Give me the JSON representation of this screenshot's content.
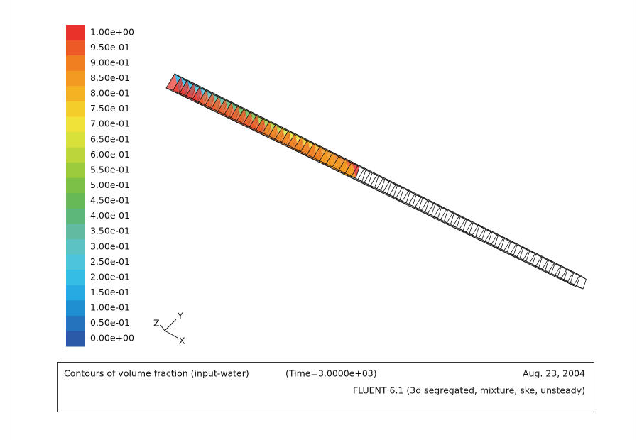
{
  "legend": {
    "labels": [
      "1.00e+00",
      "9.50e-01",
      "9.00e-01",
      "8.50e-01",
      "8.00e-01",
      "7.50e-01",
      "7.00e-01",
      "6.50e-01",
      "6.00e-01",
      "5.50e-01",
      "5.00e-01",
      "4.50e-01",
      "4.00e-01",
      "3.50e-01",
      "3.00e-01",
      "2.50e-01",
      "2.00e-01",
      "1.50e-01",
      "1.00e-01",
      "0.50e-01",
      "0.00e+00"
    ],
    "colors": [
      "#e8322a",
      "#ee5a26",
      "#f07f22",
      "#f29a21",
      "#f5b324",
      "#f4cd2b",
      "#f1e23a",
      "#d8e03a",
      "#bcd53b",
      "#9ccb3e",
      "#7dc047",
      "#67b856",
      "#5db67a",
      "#62bba0",
      "#5cc2c4",
      "#4dc4dc",
      "#36bde6",
      "#27a9e1",
      "#1f8fd2",
      "#2573bd",
      "#2b5ba8"
    ]
  },
  "axes": {
    "z": "Z",
    "y": "Y",
    "x": "X"
  },
  "caption": {
    "title": "Contours of volume fraction (input-water)",
    "time": "(Time=3.0000e+03)",
    "date": "Aug. 23, 2004",
    "solver": "FLUENT 6.1 (3d segregated, mixture, ske, unsteady)"
  }
}
